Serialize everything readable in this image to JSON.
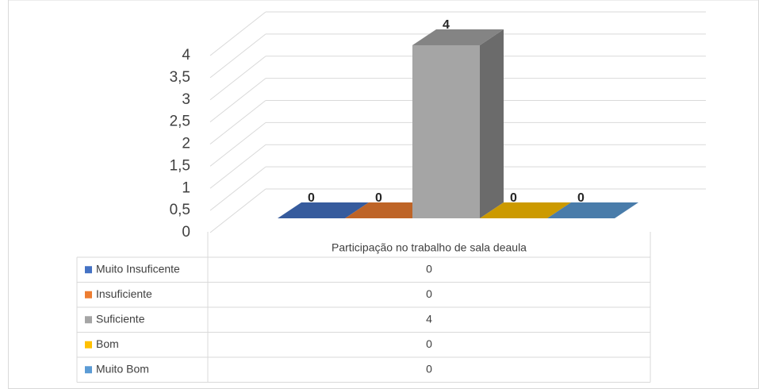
{
  "chart_data": {
    "type": "bar3d",
    "categories": [
      "Participação no trabalho de sala deaula"
    ],
    "series": [
      {
        "name": "Muito Insuficente",
        "color": "#4472c4",
        "values": [
          0
        ]
      },
      {
        "name": "Insuficiente",
        "color": "#ed7d31",
        "values": [
          0
        ]
      },
      {
        "name": "Suficiente",
        "color": "#a5a5a5",
        "values": [
          4
        ]
      },
      {
        "name": "Bom",
        "color": "#ffc000",
        "values": [
          0
        ]
      },
      {
        "name": "Muito Bom",
        "color": "#5b9bd5",
        "values": [
          0
        ]
      }
    ],
    "ylim": [
      0,
      4
    ],
    "yticks": [
      0,
      {
        "value": 0.5,
        "label": "0,5"
      },
      1,
      {
        "value": 1.5,
        "label": "1,5"
      },
      2,
      {
        "value": 2.5,
        "label": "2,5"
      },
      3,
      {
        "value": 3.5,
        "label": "3,5"
      },
      4
    ],
    "grid": true,
    "data_table": true
  }
}
